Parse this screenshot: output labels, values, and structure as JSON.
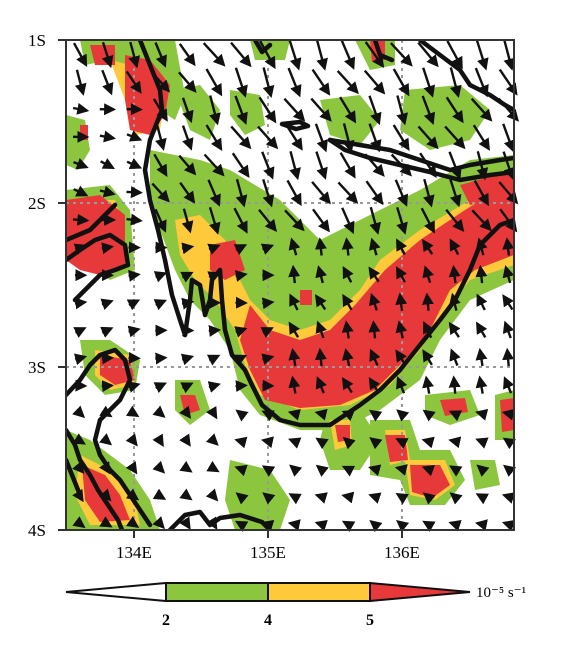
{
  "map": {
    "lat_labels": [
      "1S",
      "2S",
      "3S",
      "4S"
    ],
    "lon_labels": [
      "134E",
      "135E",
      "136E"
    ],
    "lon_range": [
      133.5,
      136.85
    ],
    "lat_range": [
      -4.0,
      -1.0
    ]
  },
  "colorbar": {
    "levels": [
      "2",
      "4",
      "5"
    ],
    "units": "10⁻⁵ s⁻¹",
    "colors": [
      "#ffffff",
      "#8cc63f",
      "#ffc93c",
      "#e8393a"
    ]
  },
  "colors": {
    "green": "#8cc63f",
    "yellow": "#ffc93c",
    "red": "#e8393a",
    "coast": "#111111",
    "grid": "#9a9a9a"
  }
}
